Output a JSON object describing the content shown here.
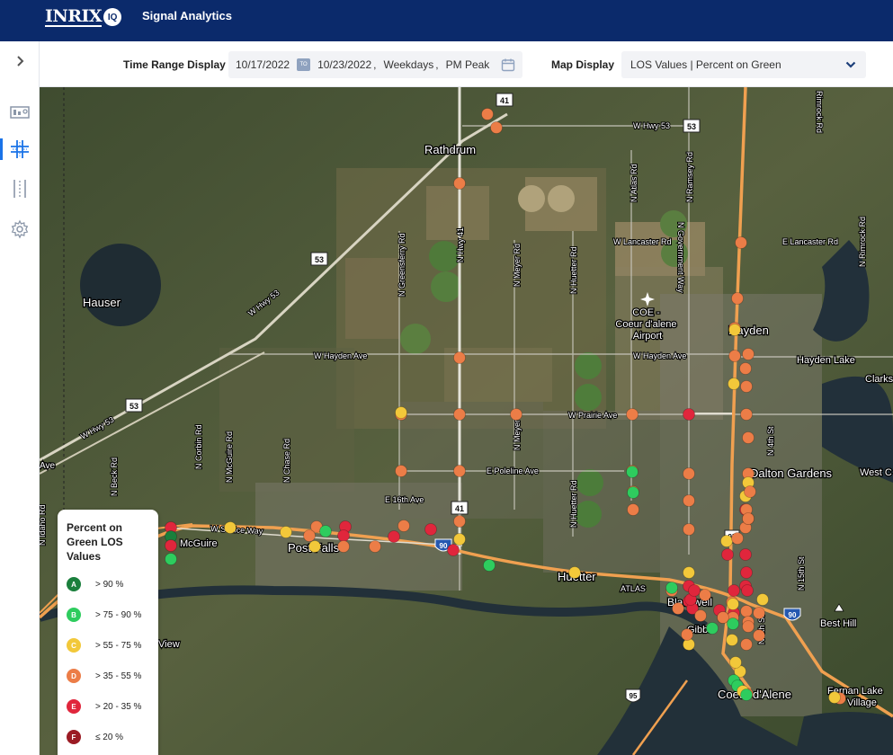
{
  "header": {
    "logo_text": "INRIX",
    "logo_badge": "IQ",
    "app_title": "Signal Analytics"
  },
  "sidebar": {
    "items": [
      {
        "name": "expand",
        "icon": "chevron-right-icon"
      },
      {
        "name": "dashboard",
        "icon": "dashboard-icon"
      },
      {
        "name": "signals",
        "icon": "intersection-icon",
        "active": true
      },
      {
        "name": "corridors",
        "icon": "corridor-icon"
      },
      {
        "name": "settings",
        "icon": "gear-icon"
      }
    ]
  },
  "toolbar": {
    "time_range_label": "Time Range Display",
    "start_date": "10/17/2022",
    "to_badge": "TO",
    "end_date": "10/23/2022",
    "day_type": "Weekdays",
    "period": "PM Peak",
    "map_display_label": "Map Display",
    "map_display_value": "LOS Values | Percent on Green"
  },
  "map_labels": {
    "hwy41": "41",
    "hwy53": "53",
    "i90": "90",
    "us95": "95",
    "hauser": "Hauser",
    "rathdrum": "Rathdrum",
    "hayden": "Hayden",
    "hayden_lake": "Hayden Lake",
    "dalton_gardens": "Dalton Gardens",
    "west_c": "West C",
    "clark": "Clarks",
    "mcguire": "McGuire",
    "post_falls": "Post Falls",
    "huetter": "Huetter",
    "blackwell": "Blackwell",
    "gibbs": "Gibbs",
    "coeur_dalene": "Coeur d'Alene",
    "best_hill": "Best Hill",
    "fernan": "Fernan Lake",
    "village": "Village",
    "view": "View",
    "atlas": "ATLAS",
    "airport": "COE - Coeur d'alene Airport",
    "w_hwy53": "W Hwy 53",
    "w_lancaster": "W Lancaster Rd",
    "e_lancaster": "E Lancaster Rd",
    "w_hayden": "W Hayden Ave",
    "w_hayden2": "W Hayden Ave",
    "prairie": "W Prairie Ave",
    "poleline": "E Poleline Ave",
    "e16th": "E 16th Ave",
    "seltice": "W Seltice Way",
    "greensferry": "N Greensferry Rd",
    "nhwy41": "N Hwy 41",
    "meyer": "N Meyer Rd",
    "meyer2": "N Meyer",
    "huetter_rd": "N Huetter Rd",
    "huetter_rd2": "N Huetter Rd",
    "atlas_rd": "N Atlas Rd",
    "ramsey": "N Ramsey Rd",
    "government": "N Government Way",
    "fourth": "N 4th St",
    "fourth2": "N 4th St",
    "fifteenth": "N 15th St",
    "rimrock": "Rimrock Rd",
    "rimrock2": "N Rimrock Rd",
    "corbin": "N Corbin Rd",
    "mcguire_rd": "N McGuire Rd",
    "chase": "N Chase Rd",
    "beck": "N Beck Rd",
    "idaho": "N Idaho Rd",
    "ave": "Ave"
  },
  "legend": {
    "title_line1": "Percent on",
    "title_line2": "Green LOS",
    "title_line3": "Values",
    "items": [
      {
        "grade": "A",
        "label": "> 90 %",
        "color": "#1a7f3c"
      },
      {
        "grade": "B",
        "label": "> 75 - 90 %",
        "color": "#2ecc5e"
      },
      {
        "grade": "C",
        "label": "> 55 - 75 %",
        "color": "#f2c83a"
      },
      {
        "grade": "D",
        "label": "> 35 - 55 %",
        "color": "#ec7d47"
      },
      {
        "grade": "E",
        "label": "> 20 - 35 %",
        "color": "#e0263c"
      },
      {
        "grade": "F",
        "label": "≤ 20 %",
        "color": "#9b1b24"
      }
    ]
  },
  "signals": [
    {
      "grade": "D"
    },
    {
      "grade": "D"
    },
    {
      "grade": "D"
    },
    {
      "grade": "D"
    },
    {
      "grade": "D"
    },
    {
      "grade": "D"
    },
    {
      "grade": "D"
    },
    {
      "grade": "D"
    },
    {
      "grade": "C"
    },
    {
      "grade": "D"
    },
    {
      "grade": "C"
    },
    {
      "grade": "D"
    },
    {
      "grade": "D"
    },
    {
      "grade": "D"
    },
    {
      "grade": "E"
    },
    {
      "grade": "D"
    },
    {
      "grade": "D"
    },
    {
      "grade": "D"
    },
    {
      "grade": "D"
    },
    {
      "grade": "D"
    },
    {
      "grade": "C"
    },
    {
      "grade": "D"
    },
    {
      "grade": "D"
    },
    {
      "grade": "D"
    },
    {
      "grade": "D"
    },
    {
      "grade": "D"
    },
    {
      "grade": "D"
    },
    {
      "grade": "C"
    },
    {
      "grade": "D"
    },
    {
      "grade": "E"
    },
    {
      "grade": "E"
    },
    {
      "grade": "C"
    },
    {
      "grade": "E"
    },
    {
      "grade": "D"
    },
    {
      "grade": "D"
    },
    {
      "grade": "D"
    },
    {
      "grade": "D"
    },
    {
      "grade": "B"
    },
    {
      "grade": "D"
    },
    {
      "grade": "E"
    },
    {
      "grade": "C"
    },
    {
      "grade": "E"
    },
    {
      "grade": "D"
    },
    {
      "grade": "E"
    },
    {
      "grade": "D"
    },
    {
      "grade": "D"
    },
    {
      "grade": "D"
    },
    {
      "grade": "C"
    },
    {
      "grade": "E"
    },
    {
      "grade": "E"
    },
    {
      "grade": "D"
    },
    {
      "grade": "B"
    },
    {
      "grade": "C"
    },
    {
      "grade": "C"
    },
    {
      "grade": "E"
    },
    {
      "grade": "A"
    },
    {
      "grade": "E"
    },
    {
      "grade": "B"
    },
    {
      "grade": "E"
    },
    {
      "grade": "E"
    },
    {
      "grade": "E"
    },
    {
      "grade": "E"
    },
    {
      "grade": "C"
    },
    {
      "grade": "D"
    },
    {
      "grade": "D"
    },
    {
      "grade": "D"
    },
    {
      "grade": "E"
    },
    {
      "grade": "D"
    },
    {
      "grade": "E"
    },
    {
      "grade": "E"
    },
    {
      "grade": "E"
    },
    {
      "grade": "B"
    },
    {
      "grade": "C"
    },
    {
      "grade": "C"
    },
    {
      "grade": "D"
    },
    {
      "grade": "D"
    },
    {
      "grade": "D"
    },
    {
      "grade": "D"
    },
    {
      "grade": "C"
    },
    {
      "grade": "C"
    },
    {
      "grade": "D"
    },
    {
      "grade": "E"
    },
    {
      "grade": "D"
    },
    {
      "grade": "D"
    },
    {
      "grade": "D"
    },
    {
      "grade": "E"
    },
    {
      "grade": "E"
    },
    {
      "grade": "C"
    },
    {
      "grade": "D"
    },
    {
      "grade": "D"
    },
    {
      "grade": "B"
    },
    {
      "grade": "B"
    },
    {
      "grade": "B"
    },
    {
      "grade": "C"
    },
    {
      "grade": "B"
    },
    {
      "grade": "D"
    },
    {
      "grade": "D"
    },
    {
      "grade": "C"
    },
    {
      "grade": "B"
    },
    {
      "grade": "B"
    },
    {
      "grade": "C"
    },
    {
      "grade": "B"
    },
    {
      "grade": "D"
    },
    {
      "grade": "C"
    },
    {
      "grade": "D"
    },
    {
      "grade": "C"
    },
    {
      "grade": "D"
    },
    {
      "grade": "D"
    },
    {
      "grade": "D"
    }
  ]
}
